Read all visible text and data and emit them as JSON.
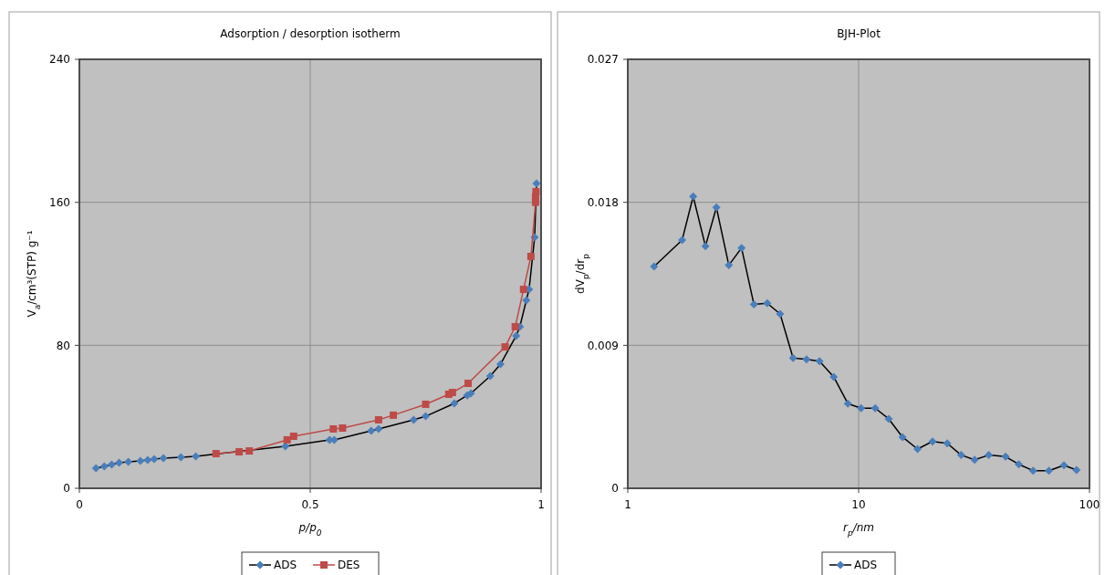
{
  "chart_data": [
    {
      "type": "line",
      "title": "Adsorption / desorption isotherm",
      "xlabel": "p/p$_{0}$",
      "ylabel": "V$_{a}$/cm³(STP) g⁻¹",
      "xlim": [
        0,
        1
      ],
      "xticks": [
        0,
        0.5,
        1
      ],
      "ylim": [
        0,
        240
      ],
      "yticks": [
        0,
        80,
        160,
        240
      ],
      "grid": true,
      "legend": "bottom",
      "series": [
        {
          "name": "ADS",
          "color": "#4a7ebb",
          "marker": "diamond",
          "x": [
            0.036,
            0.054,
            0.07,
            0.086,
            0.106,
            0.132,
            0.148,
            0.162,
            0.182,
            0.22,
            0.252,
            0.3,
            0.35,
            0.446,
            0.542,
            0.552,
            0.632,
            0.648,
            0.724,
            0.75,
            0.812,
            0.84,
            0.848,
            0.89,
            0.912,
            0.946,
            0.954,
            0.968,
            0.974,
            0.986,
            0.99
          ],
          "values": [
            11.2,
            12.3,
            13.3,
            14.3,
            14.8,
            15.3,
            15.8,
            16.3,
            16.8,
            17.4,
            17.9,
            null,
            null,
            23.5,
            27.1,
            27.1,
            32.2,
            33.2,
            38.3,
            40.3,
            47.5,
            52,
            53.1,
            62.8,
            69.4,
            85.3,
            90.4,
            105.2,
            111.3,
            140.4,
            170.5
          ]
        },
        {
          "name": "DES",
          "color": "#be4b48",
          "marker": "square",
          "x": [
            0.989,
            0.988,
            0.988,
            0.978,
            0.962,
            0.944,
            0.922,
            0.842,
            0.808,
            0.8,
            0.756,
            0.75,
            0.68,
            0.648,
            0.57,
            0.55,
            0.464,
            0.45,
            0.368,
            0.346,
            0.296
          ],
          "values": [
            166,
            163,
            160,
            129.7,
            111.3,
            90.4,
            79.1,
            58.7,
            53.6,
            52.6,
            null,
            47,
            40.9,
            38.3,
            33.7,
            33.2,
            29.1,
            27.1,
            20.9,
            20.4,
            19.4
          ]
        }
      ]
    },
    {
      "type": "line",
      "title": "BJH-Plot",
      "xlabel": "r$_{p}$/nm",
      "ylabel": "dV$_{p}$/dr$_{p}$",
      "log": "x",
      "xlim": [
        1,
        100
      ],
      "xticks": [
        1,
        10,
        100
      ],
      "ylim": [
        0,
        0.027
      ],
      "yticks": [
        0,
        0.009,
        0.018,
        0.027
      ],
      "grid": true,
      "legend": "bottom",
      "series": [
        {
          "name": "ADS",
          "color": "#4a7ebb",
          "marker": "diamond",
          "x": [
            1.3,
            1.72,
            1.92,
            2.17,
            2.42,
            2.74,
            3.11,
            3.52,
            4.02,
            4.57,
            5.2,
            5.95,
            6.77,
            7.8,
            8.98,
            10.25,
            11.8,
            13.5,
            15.5,
            18,
            20.9,
            24.2,
            27.8,
            31.8,
            36.6,
            43.3,
            49.4,
            57,
            66.7,
            77.5,
            87.9
          ],
          "values": [
            0.01396,
            0.01563,
            0.01837,
            0.01524,
            0.01768,
            0.01404,
            0.01513,
            0.01157,
            0.01165,
            0.01097,
            0.0082,
            0.00812,
            0.008,
            0.00701,
            0.00533,
            0.00504,
            0.00504,
            0.00437,
            0.00322,
            0.00247,
            0.00295,
            0.00283,
            0.00209,
            0.0018,
            0.00209,
            0.00199,
            0.00151,
            0.00111,
            0.00111,
            0.00145,
            0.00115
          ]
        }
      ]
    }
  ]
}
